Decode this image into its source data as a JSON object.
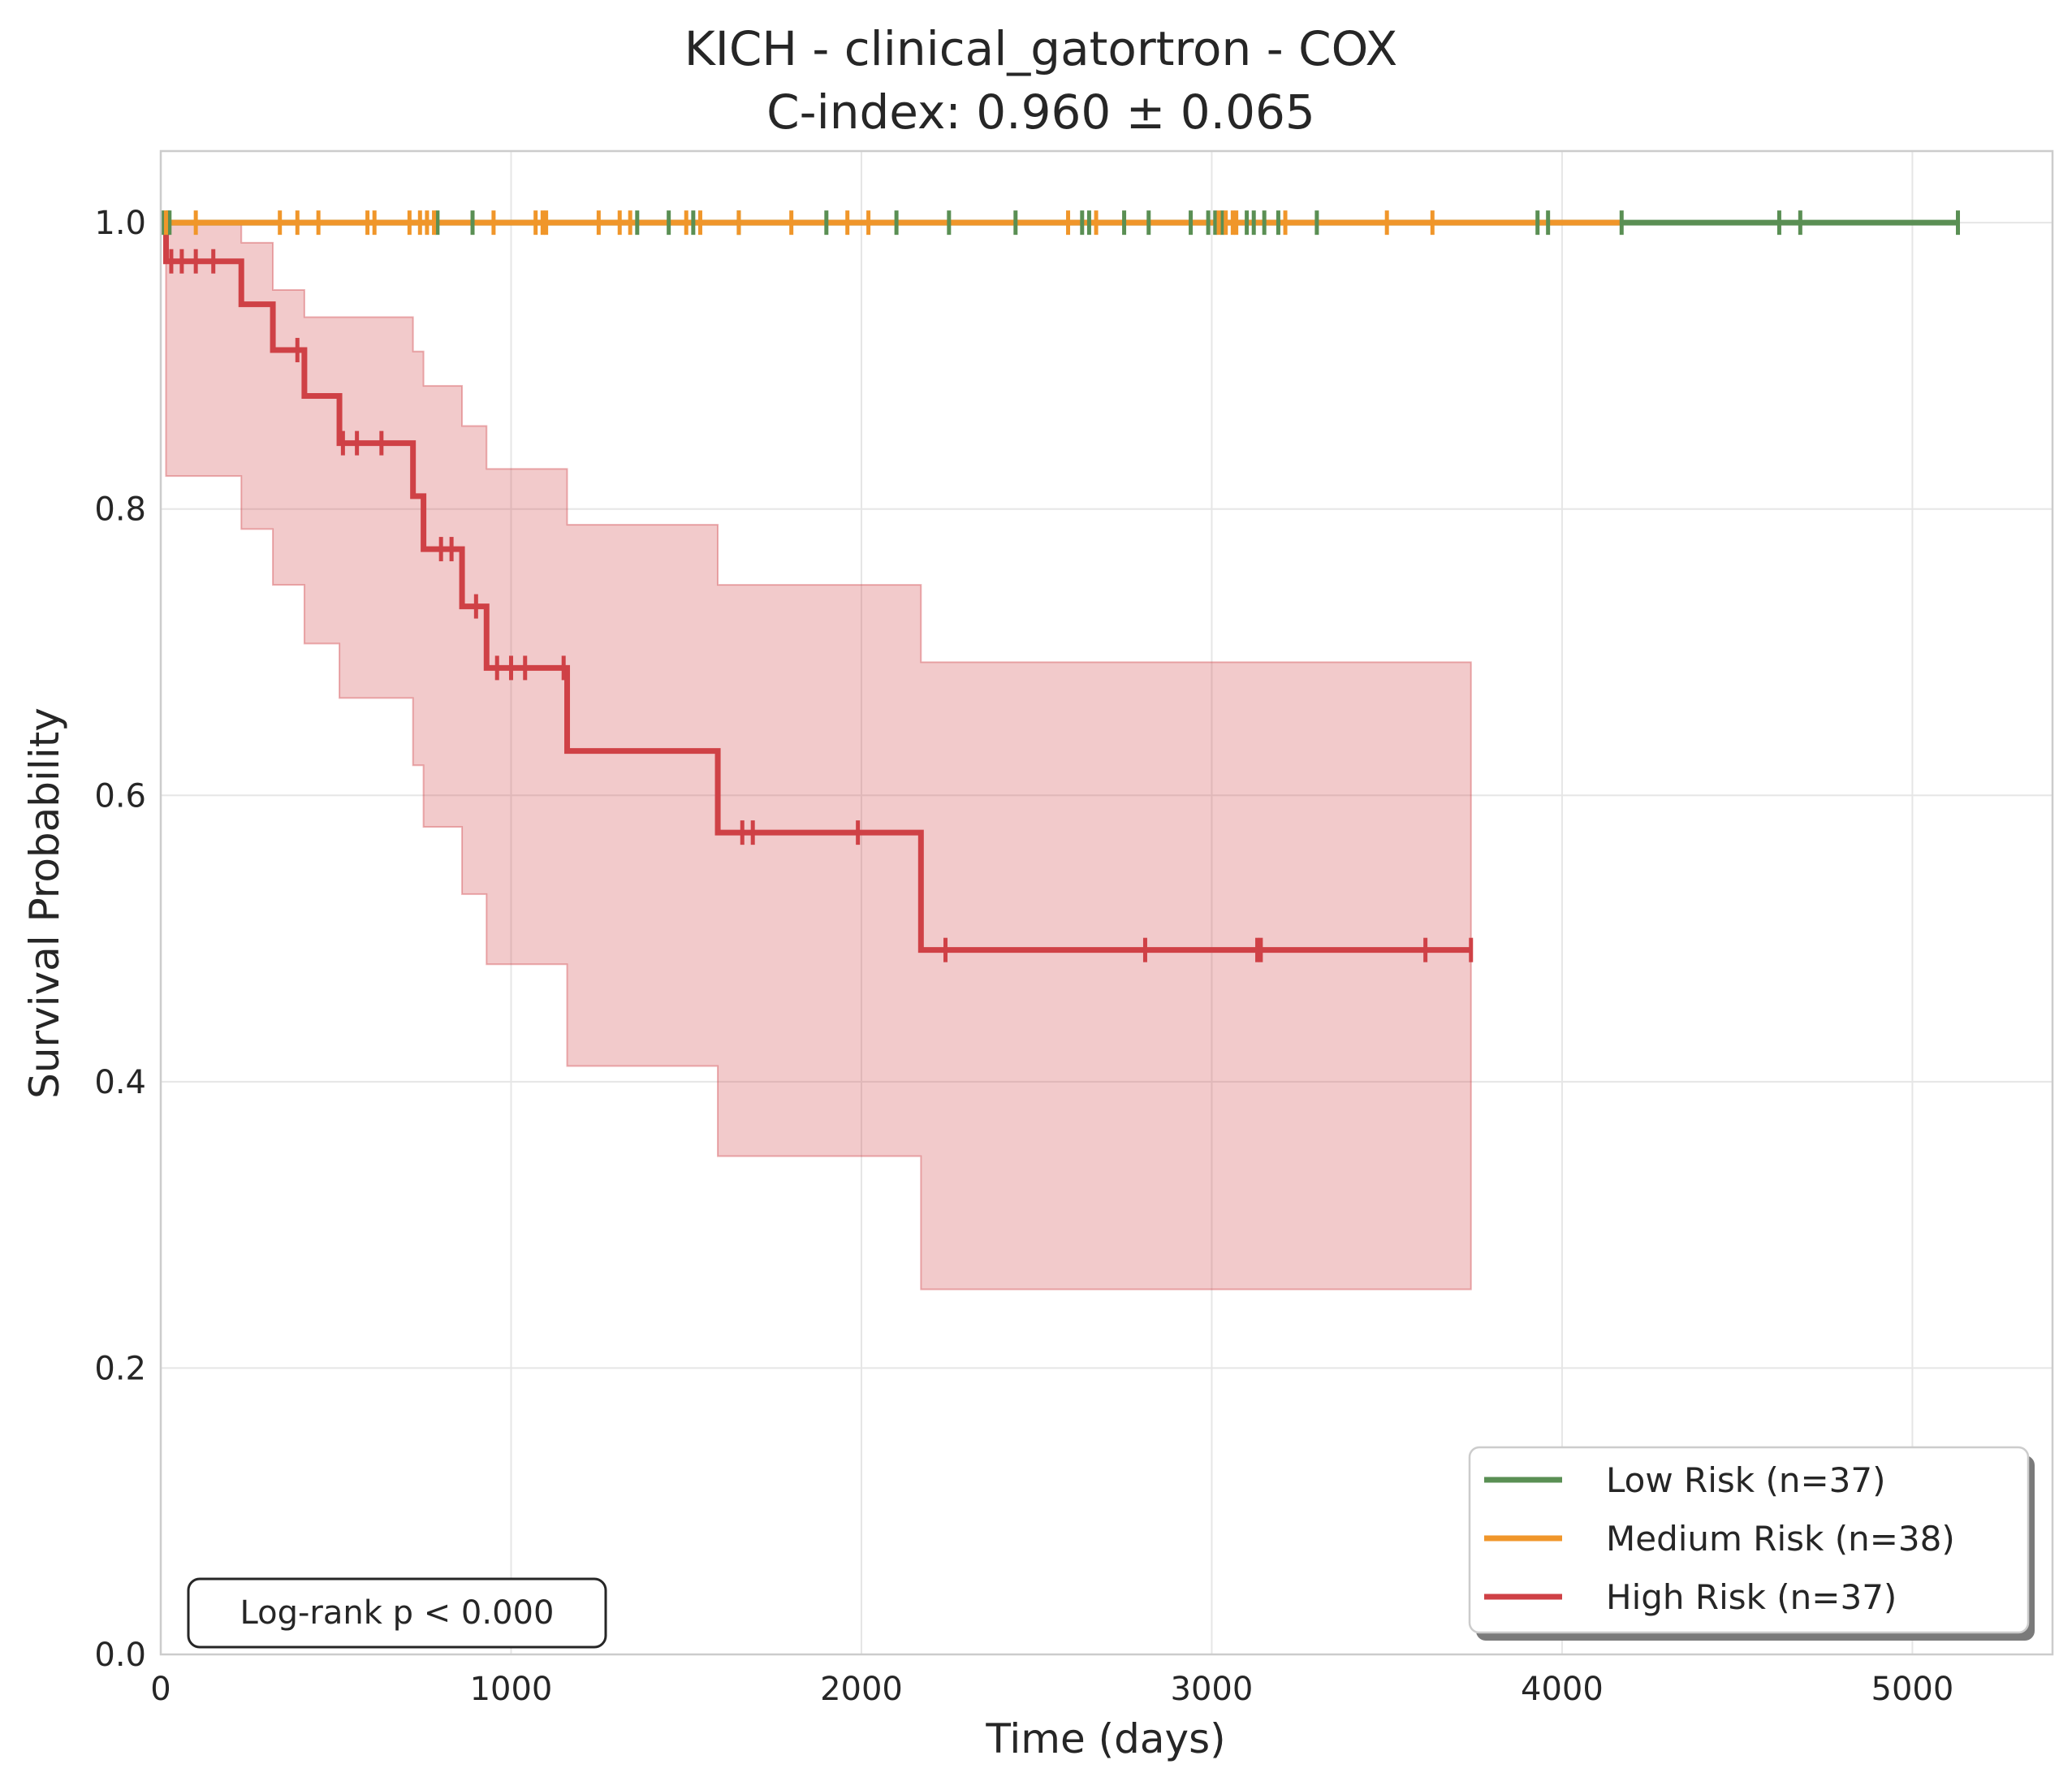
{
  "chart_data": {
    "type": "line",
    "title": "KICH - clinical_gatortron - COX",
    "subtitle": "C-index: 0.960 ± 0.065",
    "xlabel": "Time (days)",
    "ylabel": "Survival Probability",
    "xlim": [
      0,
      5400
    ],
    "ylim": [
      0,
      1.05
    ],
    "xticks": [
      0,
      1000,
      2000,
      3000,
      4000,
      5000
    ],
    "xtick_labels": [
      "0",
      "1000",
      "2000",
      "3000",
      "4000",
      "5000"
    ],
    "yticks": [
      0.0,
      0.2,
      0.4,
      0.6,
      0.8,
      1.0
    ],
    "ytick_labels": [
      "0.0",
      "0.2",
      "0.4",
      "0.6",
      "0.8",
      "1.0"
    ],
    "grid": true,
    "legend_position": "bottom-right",
    "annotation": "Log-rank p < 0.000",
    "series": [
      {
        "name": "Low Risk (n=37)",
        "color": "#5a8f54",
        "steps_t": [
          0,
          5130
        ],
        "steps_s": [
          1.0,
          1.0
        ],
        "censor_t": [
          5,
          20,
          25,
          790,
          890,
          1360,
          1450,
          1520,
          1650,
          1900,
          2100,
          2250,
          2440,
          2630,
          2650,
          2750,
          2820,
          2940,
          2990,
          3010,
          3030,
          3100,
          3120,
          3150,
          3190,
          3300,
          3930,
          3960,
          4170,
          4620,
          4680,
          5130
        ]
      },
      {
        "name": "Medium Risk (n=38)",
        "color": "#f0962a",
        "steps_t": [
          0,
          4170
        ],
        "steps_s": [
          1.0,
          1.0
        ],
        "censor_t": [
          15,
          100,
          340,
          390,
          450,
          590,
          610,
          710,
          740,
          760,
          780,
          950,
          1070,
          1090,
          1100,
          1250,
          1310,
          1340,
          1500,
          1540,
          1650,
          1800,
          1960,
          2020,
          2590,
          2670,
          3020,
          3040,
          3060,
          3070,
          3210,
          3500,
          3630
        ]
      },
      {
        "name": "High Risk (n=37)",
        "color": "#cf4146",
        "steps_t": [
          0,
          15,
          230,
          320,
          410,
          510,
          720,
          750,
          860,
          930,
          1160,
          1590,
          2170,
          3740
        ],
        "steps_s": [
          1.0,
          0.973,
          0.943,
          0.911,
          0.879,
          0.846,
          0.809,
          0.772,
          0.732,
          0.689,
          0.631,
          0.574,
          0.492,
          0.492
        ],
        "ci_lower": [
          1.0,
          0.823,
          0.786,
          0.747,
          0.706,
          0.668,
          0.621,
          0.578,
          0.531,
          0.482,
          0.411,
          0.348,
          0.255,
          0.255
        ],
        "ci_upper": [
          1.0,
          1.0,
          0.986,
          0.953,
          0.934,
          0.934,
          0.91,
          0.886,
          0.858,
          0.828,
          0.789,
          0.747,
          0.693,
          0.693
        ],
        "censor_t": [
          30,
          60,
          100,
          150,
          390,
          520,
          560,
          630,
          800,
          830,
          900,
          960,
          1000,
          1040,
          1150,
          1660,
          1690,
          1990,
          2240,
          2810,
          3130,
          3140,
          3610,
          3740
        ]
      }
    ]
  }
}
